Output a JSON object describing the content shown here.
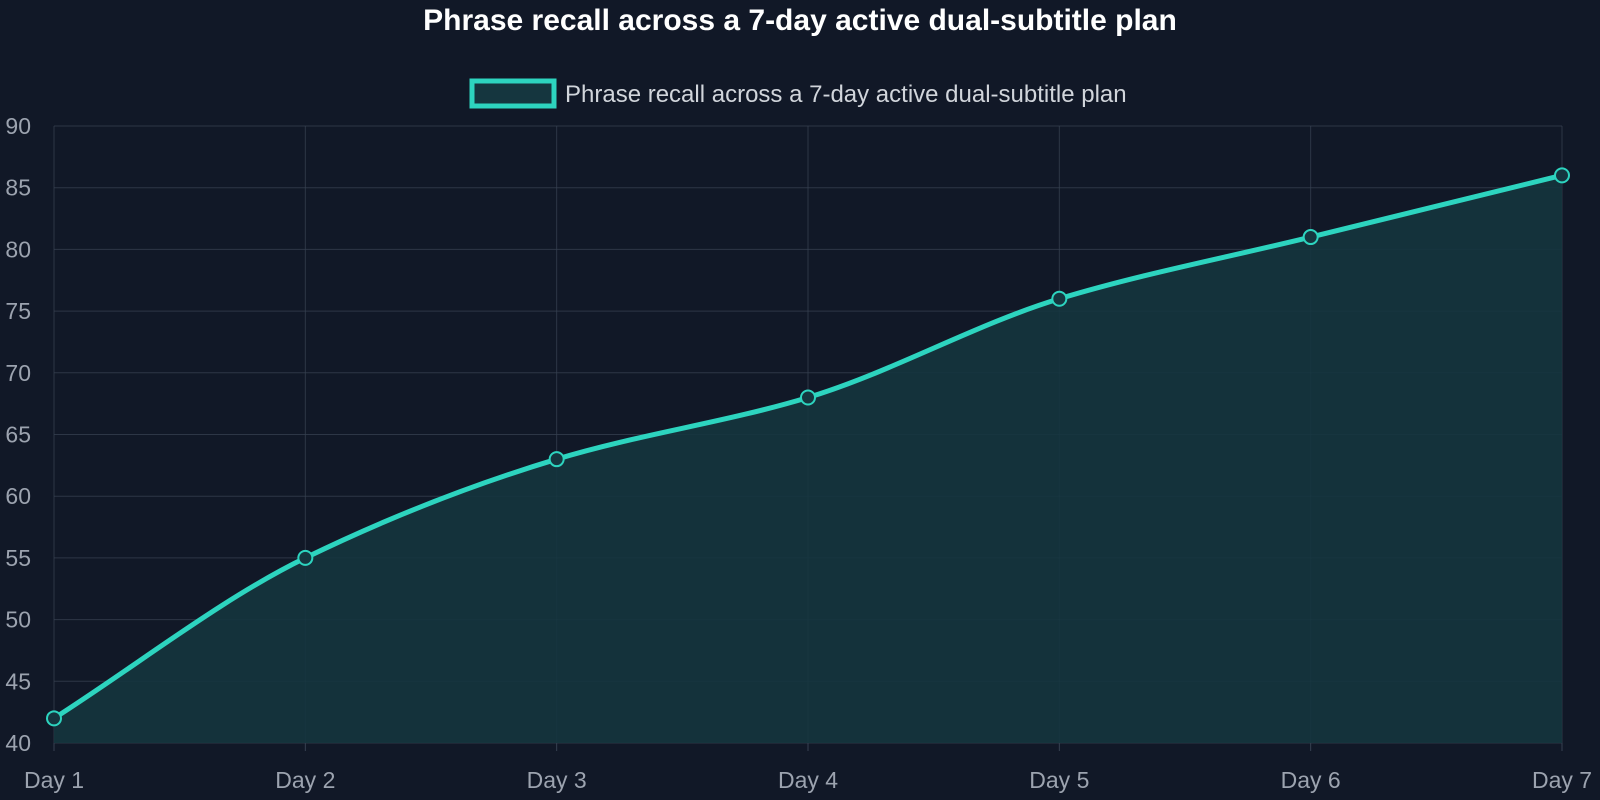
{
  "chart_data": {
    "type": "line",
    "title": "Phrase recall across a 7-day active dual-subtitle plan",
    "categories": [
      "Day 1",
      "Day 2",
      "Day 3",
      "Day 4",
      "Day 5",
      "Day 6",
      "Day 7"
    ],
    "series": [
      {
        "name": "Phrase recall across a 7-day active dual-subtitle plan",
        "values": [
          42,
          55,
          63,
          68,
          76,
          81,
          86
        ]
      }
    ],
    "ylim": [
      40,
      90
    ],
    "yticks": [
      40,
      45,
      50,
      55,
      60,
      65,
      70,
      75,
      80,
      85,
      90
    ],
    "xlabel": "",
    "ylabel": "",
    "grid": true,
    "legend": "top-center",
    "filled": true,
    "smooth": true,
    "colors": {
      "background": "#111827",
      "line": "#2dd4bf",
      "fill": "#15363f",
      "grid": "#374151",
      "title": "#ffffff",
      "legend_text": "#d1d5db",
      "tick_text": "#9ca3af"
    }
  }
}
